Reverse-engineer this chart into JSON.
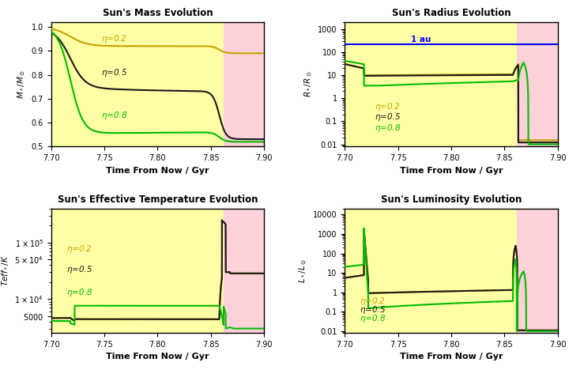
{
  "xlim": [
    7.7,
    7.9
  ],
  "x_ticks": [
    7.7,
    7.75,
    7.8,
    7.85,
    7.9
  ],
  "shade_boundary": 7.862,
  "colors": {
    "eta02": "#c8a000",
    "eta05": "#1a1a1a",
    "eta08": "#00bb00"
  },
  "titles": [
    "Sun's Mass Evolution",
    "Sun's Radius Evolution",
    "Sun's Effective Temperature Evolution",
    "Sun's Luminosity Evolution"
  ],
  "xlabel": "Time From Now / Gyr",
  "au_label": "1 au",
  "au_value": 215.0
}
